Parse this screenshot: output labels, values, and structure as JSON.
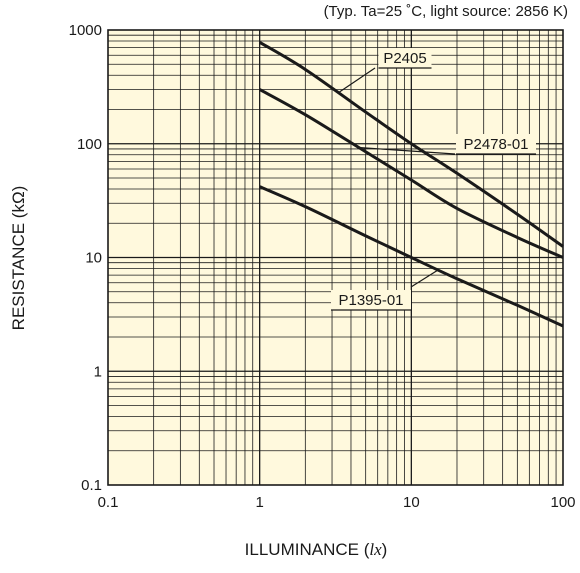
{
  "chart_data": {
    "type": "line",
    "subtitle": "(Typ. Ta=25 ˚C, light source: 2856 K)",
    "xlabel": "ILLUMINANCE (",
    "xlabel_unit": "lx",
    "xlabel_close": ")",
    "ylabel": "RESISTANCE (kΩ)",
    "x_scale": "log",
    "y_scale": "log",
    "xlim": [
      0.1,
      100
    ],
    "ylim": [
      0.1,
      1000
    ],
    "x_ticks": [
      "0.1",
      "1",
      "10",
      "100"
    ],
    "y_ticks": [
      "0.1",
      "1",
      "10",
      "100",
      "1000"
    ],
    "grid": true,
    "plot_background": "#fff9dd",
    "line_color": "#1a1a1a",
    "series": [
      {
        "name": "P2405",
        "x": [
          1,
          2,
          5,
          10,
          20,
          50,
          100
        ],
        "y": [
          780,
          450,
          190,
          100,
          55,
          24,
          12.5
        ]
      },
      {
        "name": "P2478-01",
        "x": [
          1,
          2,
          5,
          10,
          20,
          50,
          100
        ],
        "y": [
          300,
          180,
          85,
          48,
          27,
          15,
          10
        ]
      },
      {
        "name": "P1395-01",
        "x": [
          1,
          2,
          5,
          10,
          20,
          50,
          100
        ],
        "y": [
          42,
          28,
          15.5,
          10,
          6.5,
          3.8,
          2.5
        ]
      }
    ]
  }
}
